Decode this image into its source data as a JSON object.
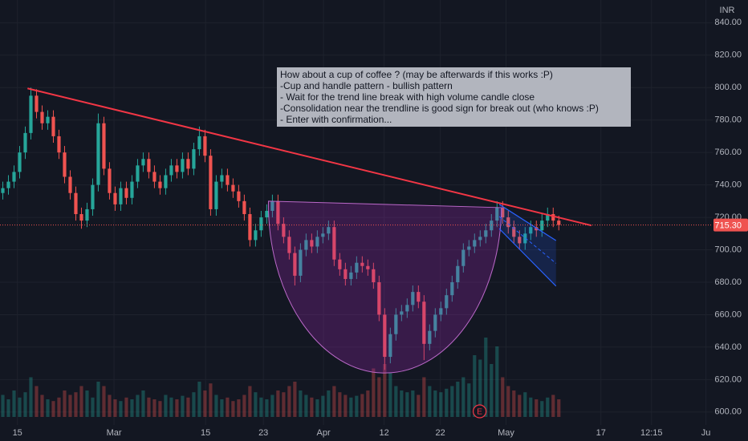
{
  "chart_data": {
    "type": "candlestick",
    "currency": "INR",
    "xlim": [
      -0.5,
      126.4
    ],
    "ylim": [
      592,
      854
    ],
    "yticks": [
      {
        "value": 600,
        "label": "600.00"
      },
      {
        "value": 620,
        "label": "620.00"
      },
      {
        "value": 640,
        "label": "640.00"
      },
      {
        "value": 660,
        "label": "660.00"
      },
      {
        "value": 680,
        "label": "680.00"
      },
      {
        "value": 700,
        "label": "700.00"
      },
      {
        "value": 720,
        "label": "720.00"
      },
      {
        "value": 740,
        "label": "740.00"
      },
      {
        "value": 760,
        "label": "760.00"
      },
      {
        "value": 780,
        "label": "780.00"
      },
      {
        "value": 800,
        "label": "800.00"
      },
      {
        "value": 820,
        "label": "820.00"
      },
      {
        "value": 840,
        "label": "840.00"
      }
    ],
    "xticks": [
      {
        "value": 2.6,
        "label": "15"
      },
      {
        "value": 19.8,
        "label": "Mar"
      },
      {
        "value": 36.1,
        "label": "15"
      },
      {
        "value": 46.4,
        "label": "23"
      },
      {
        "value": 57.1,
        "label": "Apr"
      },
      {
        "value": 67.9,
        "label": "12"
      },
      {
        "value": 77.9,
        "label": "22"
      },
      {
        "value": 89.6,
        "label": "May"
      },
      {
        "value": 106.5,
        "label": "17"
      },
      {
        "value": 115.5,
        "label": "12:15"
      },
      {
        "value": 125.2,
        "label": "Ju"
      }
    ],
    "last_price": {
      "value": 715.3,
      "label": "715.30"
    },
    "up_color": "#26a69a",
    "down_color": "#ef5350",
    "grid": true,
    "open": [
      735,
      738,
      742,
      748,
      760,
      772,
      795,
      785,
      778,
      782,
      770,
      760,
      745,
      735,
      722,
      718,
      725,
      740,
      778,
      750,
      735,
      728,
      738,
      732,
      742,
      752,
      756,
      748,
      742,
      738,
      746,
      752,
      748,
      756,
      750,
      762,
      770,
      758,
      725,
      742,
      746,
      740,
      736,
      730,
      722,
      706,
      712,
      720,
      724,
      730,
      716,
      708,
      698,
      684,
      700,
      706,
      702,
      708,
      710,
      714,
      694,
      688,
      682,
      686,
      692,
      690,
      688,
      680,
      660,
      634,
      648,
      660,
      662,
      666,
      674,
      668,
      642,
      650,
      660,
      664,
      672,
      680,
      690,
      700,
      702,
      706,
      708,
      712,
      718,
      726,
      720,
      714,
      708,
      704,
      710,
      714,
      712,
      718,
      722,
      718
    ],
    "high": [
      742,
      746,
      752,
      764,
      776,
      800,
      799,
      789,
      786,
      786,
      774,
      764,
      749,
      739,
      726,
      729,
      744,
      784,
      782,
      754,
      739,
      742,
      742,
      746,
      756,
      760,
      760,
      752,
      746,
      750,
      756,
      756,
      760,
      760,
      766,
      776,
      774,
      762,
      746,
      750,
      750,
      744,
      740,
      734,
      726,
      716,
      724,
      728,
      734,
      734,
      720,
      712,
      702,
      704,
      710,
      710,
      712,
      714,
      718,
      718,
      698,
      692,
      690,
      696,
      696,
      694,
      692,
      684,
      664,
      652,
      664,
      666,
      670,
      678,
      678,
      672,
      654,
      664,
      668,
      676,
      684,
      694,
      704,
      706,
      710,
      712,
      716,
      722,
      730,
      730,
      724,
      718,
      712,
      714,
      718,
      718,
      722,
      726,
      726,
      721
    ],
    "low": [
      731,
      734,
      738,
      744,
      756,
      768,
      781,
      774,
      774,
      766,
      756,
      741,
      731,
      718,
      713,
      714,
      721,
      736,
      746,
      731,
      724,
      724,
      728,
      728,
      738,
      748,
      744,
      738,
      734,
      734,
      742,
      744,
      744,
      746,
      746,
      758,
      754,
      721,
      721,
      738,
      736,
      732,
      726,
      718,
      702,
      702,
      708,
      716,
      720,
      712,
      704,
      694,
      678,
      680,
      696,
      698,
      698,
      704,
      706,
      690,
      684,
      678,
      678,
      682,
      686,
      684,
      676,
      656,
      626,
      630,
      644,
      656,
      658,
      662,
      664,
      632,
      638,
      646,
      656,
      660,
      668,
      676,
      686,
      696,
      698,
      702,
      704,
      708,
      714,
      716,
      710,
      704,
      700,
      700,
      706,
      708,
      708,
      714,
      714,
      712
    ],
    "close": [
      738,
      742,
      748,
      760,
      772,
      795,
      785,
      778,
      782,
      770,
      760,
      745,
      735,
      722,
      718,
      725,
      740,
      778,
      750,
      735,
      728,
      738,
      732,
      742,
      752,
      756,
      748,
      742,
      738,
      746,
      752,
      748,
      756,
      750,
      762,
      770,
      758,
      725,
      742,
      746,
      740,
      736,
      730,
      722,
      706,
      712,
      720,
      724,
      730,
      716,
      708,
      698,
      684,
      700,
      706,
      702,
      708,
      710,
      714,
      694,
      688,
      682,
      686,
      692,
      690,
      688,
      680,
      660,
      634,
      648,
      660,
      662,
      666,
      674,
      668,
      642,
      650,
      660,
      664,
      672,
      680,
      690,
      700,
      702,
      706,
      708,
      712,
      718,
      726,
      720,
      714,
      708,
      704,
      710,
      714,
      712,
      718,
      722,
      718,
      715.3
    ],
    "volume": [
      25,
      20,
      30,
      22,
      28,
      45,
      35,
      25,
      20,
      18,
      22,
      30,
      25,
      28,
      35,
      30,
      22,
      40,
      35,
      25,
      20,
      18,
      22,
      20,
      25,
      30,
      22,
      20,
      18,
      25,
      22,
      20,
      24,
      22,
      28,
      40,
      30,
      38,
      25,
      20,
      22,
      18,
      20,
      25,
      35,
      28,
      22,
      20,
      25,
      30,
      28,
      35,
      40,
      30,
      25,
      22,
      20,
      24,
      30,
      35,
      28,
      25,
      22,
      24,
      26,
      30,
      55,
      45,
      60,
      50,
      35,
      30,
      28,
      30,
      25,
      45,
      35,
      30,
      28,
      32,
      35,
      40,
      45,
      38,
      70,
      65,
      90,
      60,
      80,
      45,
      35,
      30,
      25,
      28,
      22,
      20,
      18,
      22,
      25,
      20
    ],
    "volume_lim": [
      0,
      200
    ],
    "trendline": [
      [
        4.4,
        799.5
      ],
      [
        104.8,
        715
      ]
    ],
    "cup": {
      "left": [
        47.3,
        730
      ],
      "right": [
        88.8,
        726
      ],
      "bottom": [
        70.2,
        624
      ]
    },
    "channel": {
      "upper": [
        [
          88.4,
          728
        ],
        [
          98.5,
          705.7
        ]
      ],
      "lower": [
        [
          88.4,
          713
        ],
        [
          98.5,
          677.6
        ]
      ]
    },
    "events": [
      {
        "x": 84.9,
        "label": "E"
      }
    ],
    "annotation": [
      "How about a cup of coffee ? (may be afterwards if this works :P)",
      "-Cup and handle pattern - bullish pattern",
      "- Wait for the trend line break with high volume candle close",
      "-Consolidation near the trendline is good sign for break out (who knows :P)",
      "- Enter with confirmation..."
    ]
  }
}
